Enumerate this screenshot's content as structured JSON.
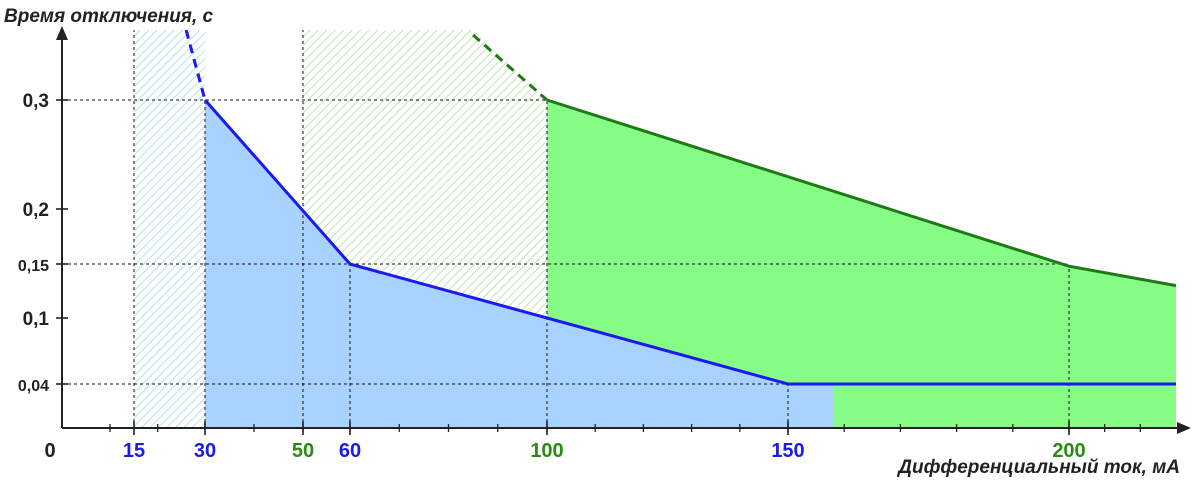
{
  "chart_data": {
    "type": "area",
    "ylabel": "Время отключения, с",
    "xlabel": "Дифференциальный ток, мА",
    "x_origin_label": "0",
    "x_ticks": [
      {
        "value": 15,
        "label": "15",
        "color": "#1a1aee"
      },
      {
        "value": 30,
        "label": "30",
        "color": "#1a1aee"
      },
      {
        "value": 50,
        "label": "50",
        "color": "#2a8a14"
      },
      {
        "value": 60,
        "label": "60",
        "color": "#1a1aee"
      },
      {
        "value": 100,
        "label": "100",
        "color": "#2a8a14"
      },
      {
        "value": 150,
        "label": "150",
        "color": "#1a1aee"
      },
      {
        "value": 200,
        "label": "200",
        "color": "#2a8a14"
      }
    ],
    "y_ticks": [
      {
        "value": 0.3,
        "label": "0,3"
      },
      {
        "value": 0.2,
        "label": "0,2"
      },
      {
        "value": 0.15,
        "label": "0,15"
      },
      {
        "value": 0.1,
        "label": "0,1"
      },
      {
        "value": 0.04,
        "label": "0,04"
      }
    ],
    "series": [
      {
        "color": "#1a1aee",
        "fill": "#a8d2ff",
        "hatch_zone_x": [
          15,
          30
        ],
        "dashed": [
          [
            26,
            0.37
          ],
          [
            30,
            0.3
          ]
        ],
        "points": [
          [
            30,
            0.3
          ],
          [
            60,
            0.15
          ],
          [
            150,
            0.04
          ],
          [
            230,
            0.04
          ]
        ],
        "fill_x_end": 158
      },
      {
        "color": "#1e7a14",
        "fill": "#86fb86",
        "hatch_zone_x": [
          50,
          100
        ],
        "dashed": [
          [
            85,
            0.365
          ],
          [
            100,
            0.3
          ]
        ],
        "points": [
          [
            100,
            0.3
          ],
          [
            200,
            0.148
          ],
          [
            230,
            0.13
          ]
        ]
      }
    ]
  }
}
